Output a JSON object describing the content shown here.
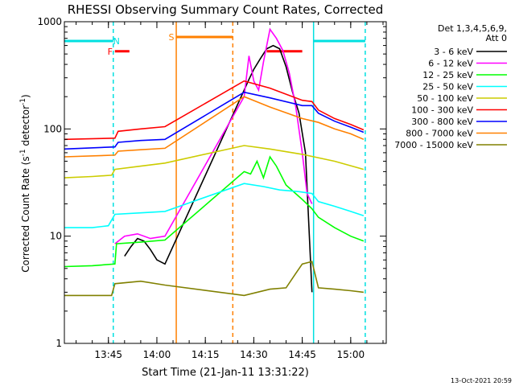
{
  "chart_data": {
    "type": "line",
    "title": "RHESSI Observing Summary Count Rates, Corrected",
    "xlabel": "Start Time (21-Jan-11 13:31:22)",
    "ylabel_main": "Corrected Count Rate (s",
    "ylabel_sup1": "-1",
    "ylabel_mid": " detector",
    "ylabel_sup2": "-1",
    "ylabel_end": ")",
    "y_scale": "log",
    "ylim": [
      1,
      1000
    ],
    "y_ticks": [
      {
        "v": 1,
        "label": "1"
      },
      {
        "v": 10,
        "label": "10"
      },
      {
        "v": 100,
        "label": "100"
      },
      {
        "v": 1000,
        "label": "1000"
      }
    ],
    "xlim": [
      "13:31:22",
      "15:11:00"
    ],
    "x_ticks": [
      {
        "t": "13:45",
        "label": "13:45"
      },
      {
        "t": "14:00",
        "label": "14:00"
      },
      {
        "t": "14:15",
        "label": "14:15"
      },
      {
        "t": "14:30",
        "label": "14:30"
      },
      {
        "t": "14:45",
        "label": "14:45"
      },
      {
        "t": "15:00",
        "label": "15:00"
      }
    ],
    "legend_header": [
      "Det 1,3,4,5,6,9,",
      "Att 0"
    ],
    "legend_position": "right",
    "timestamp": "13-Oct-2021 20:59",
    "series": [
      {
        "name": "3 - 6 keV",
        "color": "#000000",
        "points": [
          [
            "13:50:00",
            6.5
          ],
          [
            "13:52:00",
            8
          ],
          [
            "13:54:00",
            9.5
          ],
          [
            "13:56:00",
            9
          ],
          [
            "13:58:00",
            7.5
          ],
          [
            "14:00:00",
            6
          ],
          [
            "14:02:30",
            5.5
          ],
          [
            "14:27:00",
            230
          ],
          [
            "14:28:30",
            290
          ],
          [
            "14:30:00",
            360
          ],
          [
            "14:32:00",
            450
          ],
          [
            "14:34:00",
            560
          ],
          [
            "14:36:00",
            600
          ],
          [
            "14:38:00",
            560
          ],
          [
            "14:40:00",
            380
          ],
          [
            "14:42:00",
            220
          ],
          [
            "14:44:00",
            140
          ],
          [
            "14:46:00",
            60
          ],
          [
            "14:48:00",
            3
          ]
        ]
      },
      {
        "name": "6 - 12 keV",
        "color": "#ff00ff",
        "points": [
          [
            "13:47:00",
            8.5
          ],
          [
            "13:50:00",
            10
          ],
          [
            "13:54:00",
            10.5
          ],
          [
            "13:58:00",
            9.5
          ],
          [
            "14:02:30",
            10
          ],
          [
            "14:27:00",
            200
          ],
          [
            "14:28:30",
            480
          ],
          [
            "14:30:00",
            280
          ],
          [
            "14:31:30",
            230
          ],
          [
            "14:33:00",
            420
          ],
          [
            "14:35:00",
            850
          ],
          [
            "14:37:00",
            700
          ],
          [
            "14:39:00",
            540
          ],
          [
            "14:41:00",
            330
          ],
          [
            "14:43:00",
            160
          ],
          [
            "14:45:00",
            60
          ],
          [
            "14:46:30",
            25
          ],
          [
            "14:48:00",
            20
          ]
        ]
      },
      {
        "name": "12 - 25 keV",
        "color": "#00ff00",
        "points": [
          [
            "13:31:22",
            5.2
          ],
          [
            "13:40:00",
            5.3
          ],
          [
            "13:47:00",
            5.5
          ],
          [
            "13:47:30",
            8.5
          ],
          [
            "13:55:00",
            8.8
          ],
          [
            "14:02:30",
            9.2
          ],
          [
            "14:27:00",
            40
          ],
          [
            "14:29:00",
            38
          ],
          [
            "14:31:00",
            50
          ],
          [
            "14:33:00",
            35
          ],
          [
            "14:35:00",
            55
          ],
          [
            "14:37:00",
            45
          ],
          [
            "14:40:00",
            30
          ],
          [
            "14:45:00",
            22
          ],
          [
            "14:48:00",
            18
          ],
          [
            "14:50:00",
            15
          ],
          [
            "14:55:00",
            12
          ],
          [
            "15:00:00",
            10
          ],
          [
            "15:04:00",
            9
          ]
        ]
      },
      {
        "name": "25 - 50 keV",
        "color": "#00ffff",
        "points": [
          [
            "13:31:22",
            12
          ],
          [
            "13:40:00",
            12
          ],
          [
            "13:45:00",
            12.5
          ],
          [
            "13:47:00",
            16
          ],
          [
            "13:55:00",
            16.5
          ],
          [
            "14:02:30",
            17
          ],
          [
            "14:27:00",
            31
          ],
          [
            "14:33:00",
            29
          ],
          [
            "14:38:00",
            27
          ],
          [
            "14:44:00",
            26
          ],
          [
            "14:48:00",
            25
          ],
          [
            "14:50:00",
            21
          ],
          [
            "14:55:00",
            19
          ],
          [
            "15:00:00",
            17
          ],
          [
            "15:04:00",
            15.5
          ]
        ]
      },
      {
        "name": "50 - 100 keV",
        "color": "#cccc00",
        "points": [
          [
            "13:31:22",
            35
          ],
          [
            "13:40:00",
            36
          ],
          [
            "13:46:00",
            37
          ],
          [
            "13:47:00",
            42
          ],
          [
            "13:55:00",
            45
          ],
          [
            "14:02:30",
            48
          ],
          [
            "14:27:00",
            70
          ],
          [
            "14:35:00",
            65
          ],
          [
            "14:45:00",
            58
          ],
          [
            "14:55:00",
            50
          ],
          [
            "15:04:00",
            42
          ]
        ]
      },
      {
        "name": "100 - 300 keV",
        "color": "#ff0000",
        "points": [
          [
            "13:31:22",
            80
          ],
          [
            "13:47:00",
            82
          ],
          [
            "13:48:00",
            95
          ],
          [
            "13:55:00",
            100
          ],
          [
            "14:02:30",
            105
          ],
          [
            "14:27:00",
            280
          ],
          [
            "14:35:00",
            240
          ],
          [
            "14:45:00",
            185
          ],
          [
            "14:48:00",
            180
          ],
          [
            "14:50:00",
            150
          ],
          [
            "14:55:00",
            125
          ],
          [
            "15:00:00",
            110
          ],
          [
            "15:04:00",
            98
          ]
        ]
      },
      {
        "name": "300 - 800 keV",
        "color": "#0000ff",
        "points": [
          [
            "13:31:22",
            65
          ],
          [
            "13:47:00",
            68
          ],
          [
            "13:48:00",
            75
          ],
          [
            "13:55:00",
            78
          ],
          [
            "14:02:30",
            80
          ],
          [
            "14:27:00",
            220
          ],
          [
            "14:35:00",
            195
          ],
          [
            "14:45:00",
            165
          ],
          [
            "14:48:00",
            165
          ],
          [
            "14:50:00",
            140
          ],
          [
            "14:55:00",
            118
          ],
          [
            "15:00:00",
            104
          ],
          [
            "15:04:00",
            93
          ]
        ]
      },
      {
        "name": "800 - 7000 keV",
        "color": "#ff8000",
        "points": [
          [
            "13:31:22",
            55
          ],
          [
            "13:47:00",
            57
          ],
          [
            "13:48:00",
            62
          ],
          [
            "13:55:00",
            64
          ],
          [
            "14:02:30",
            66
          ],
          [
            "14:27:00",
            200
          ],
          [
            "14:35:00",
            160
          ],
          [
            "14:45:00",
            125
          ],
          [
            "14:50:00",
            115
          ],
          [
            "14:55:00",
            100
          ],
          [
            "15:00:00",
            90
          ],
          [
            "15:04:00",
            80
          ]
        ]
      },
      {
        "name": "7000 - 15000 keV",
        "color": "#808000",
        "points": [
          [
            "13:31:22",
            2.8
          ],
          [
            "13:46:00",
            2.8
          ],
          [
            "13:47:00",
            3.6
          ],
          [
            "13:55:00",
            3.8
          ],
          [
            "14:02:30",
            3.5
          ],
          [
            "14:27:00",
            2.8
          ],
          [
            "14:35:00",
            3.2
          ],
          [
            "14:40:00",
            3.3
          ],
          [
            "14:43:00",
            4.5
          ],
          [
            "14:45:00",
            5.5
          ],
          [
            "14:48:00",
            5.8
          ],
          [
            "14:50:00",
            3.3
          ],
          [
            "14:55:00",
            3.2
          ],
          [
            "15:00:00",
            3.1
          ],
          [
            "15:04:00",
            3.0
          ]
        ]
      }
    ],
    "flags": [
      {
        "label": "N",
        "color": "#00e0e0",
        "segments": [
          [
            "13:31:22",
            "13:46:30"
          ],
          [
            "14:48:30",
            "15:04:30"
          ]
        ],
        "level": 660,
        "label_time": "13:47:30"
      },
      {
        "label": "F",
        "color": "#ff0000",
        "segments": [
          [
            "13:47:00",
            "13:51:30"
          ],
          [
            "14:34:00",
            "14:45:00"
          ]
        ],
        "level": 530,
        "label_time": "13:45:30"
      },
      {
        "label": "S",
        "color": "#ff8000",
        "segments": [
          [
            "14:06:00",
            "14:23:30"
          ]
        ],
        "level": 720,
        "label_time": "14:04:30"
      }
    ],
    "vlines": [
      {
        "t": "13:46:30",
        "color": "#00e0e0",
        "style": "dashed"
      },
      {
        "t": "14:48:30",
        "color": "#00e0e0",
        "style": "solid"
      },
      {
        "t": "15:04:30",
        "color": "#00e0e0",
        "style": "dashed"
      },
      {
        "t": "14:06:00",
        "color": "#ff8000",
        "style": "solid"
      },
      {
        "t": "14:23:30",
        "color": "#ff8000",
        "style": "dashed"
      }
    ]
  }
}
